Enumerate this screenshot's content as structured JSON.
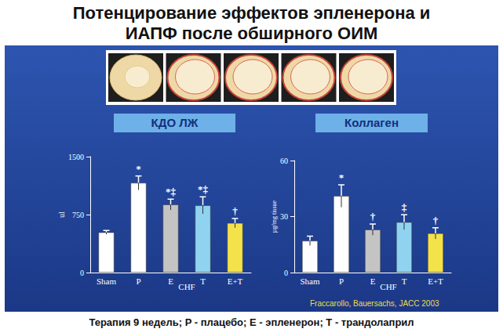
{
  "title": "Потенцирование эффектов эпленерона и ИАПФ после обширного ОИМ",
  "footer": "Терапия 9 недель; P - плацебо; E - эпленерон; T - трандолаприл",
  "chart_data": [
    {
      "type": "bar",
      "title": "КДО ЛЖ",
      "ylabel": "ul",
      "categories": [
        "Sham",
        "P",
        "E",
        "T",
        "E+T"
      ],
      "values": [
        520,
        1160,
        880,
        870,
        640
      ],
      "errors": [
        25,
        90,
        70,
        110,
        60
      ],
      "significance": [
        null,
        "*",
        "*‡",
        "*‡",
        "†"
      ],
      "colors": [
        "#ffffff",
        "#ffffff",
        "#c4c4c4",
        "#8fd3f0",
        "#f3e24a"
      ],
      "group": {
        "label": "CHF",
        "categories": [
          "P",
          "E",
          "T",
          "E+T"
        ]
      },
      "ylim": [
        0,
        1500
      ],
      "yticks": [
        0,
        750,
        1500
      ],
      "grid": false
    },
    {
      "type": "bar",
      "title": "Коллаген",
      "ylabel": "µg/mg tissue",
      "categories": [
        "Sham",
        "P",
        "E",
        "T",
        "E+T"
      ],
      "values": [
        17,
        41,
        23,
        27,
        21
      ],
      "errors": [
        2.5,
        6,
        3,
        4,
        3
      ],
      "significance": [
        null,
        "*",
        "†",
        "‡",
        "†"
      ],
      "colors": [
        "#ffffff",
        "#ffffff",
        "#c4c4c4",
        "#8fd3f0",
        "#f3e24a"
      ],
      "group": {
        "label": "CHF",
        "categories": [
          "P",
          "E",
          "T",
          "E+T"
        ]
      },
      "annotation": "Fraccarollo, Bauersachs, JACC 2003",
      "ylim": [
        0,
        60
      ],
      "yticks": [
        0,
        30,
        60
      ],
      "grid": false
    }
  ]
}
